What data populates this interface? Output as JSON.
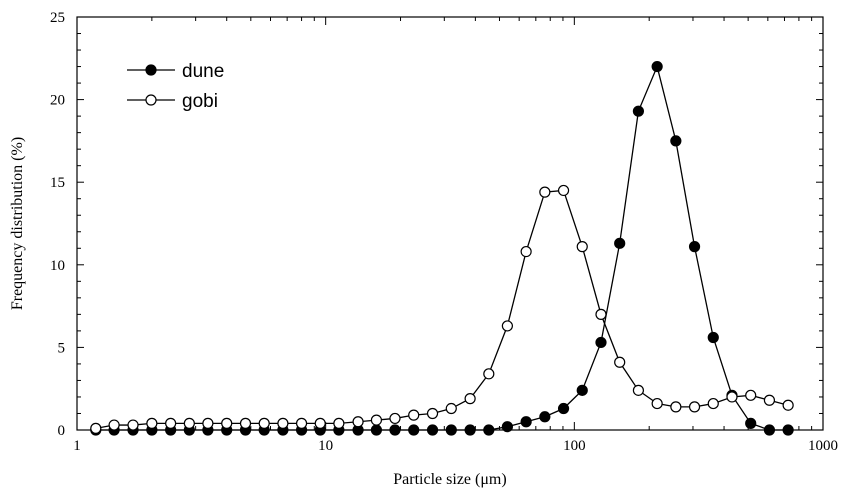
{
  "chart_data": {
    "type": "line",
    "xlabel": "Particle size (μm)",
    "ylabel": "Frequency distribution (%)",
    "xscale": "log",
    "xlim": [
      1,
      1000
    ],
    "ylim": [
      0,
      25
    ],
    "x_ticks": [
      "1",
      "10",
      "100",
      "1000"
    ],
    "x_tick_values": [
      1,
      10,
      100,
      1000
    ],
    "y_ticks": [
      "0",
      "5",
      "10",
      "15",
      "20",
      "25"
    ],
    "y_tick_values": [
      0,
      5,
      10,
      15,
      20,
      25
    ],
    "grid": false,
    "legend_position": "top-left",
    "series": [
      {
        "name": "dune",
        "marker": "filled-circle",
        "color": "#000000",
        "x": [
          1.19,
          1.41,
          1.68,
          2.0,
          2.38,
          2.83,
          3.36,
          4.0,
          4.76,
          5.66,
          6.73,
          8.0,
          9.51,
          11.3,
          13.5,
          16.0,
          19.0,
          22.6,
          26.9,
          32.0,
          38.1,
          45.3,
          53.8,
          64.0,
          76.1,
          90.5,
          107.6,
          128.0,
          152.2,
          181.0,
          215.3,
          256.0,
          304.4,
          362.0,
          430.5,
          512.0,
          608.9,
          724.1
        ],
        "y": [
          0,
          0,
          0,
          0,
          0,
          0,
          0,
          0,
          0,
          0,
          0,
          0,
          0,
          0,
          0,
          0,
          0,
          0,
          0,
          0,
          0,
          0,
          0.2,
          0.5,
          0.8,
          1.3,
          2.4,
          5.3,
          11.3,
          19.3,
          22.0,
          17.5,
          11.1,
          5.6,
          2.1,
          0.4,
          0,
          0
        ]
      },
      {
        "name": "gobi",
        "marker": "open-circle",
        "color": "#000000",
        "x": [
          1.19,
          1.41,
          1.68,
          2.0,
          2.38,
          2.83,
          3.36,
          4.0,
          4.76,
          5.66,
          6.73,
          8.0,
          9.51,
          11.3,
          13.5,
          16.0,
          19.0,
          22.6,
          26.9,
          32.0,
          38.1,
          45.3,
          53.8,
          64.0,
          76.1,
          90.5,
          107.6,
          128.0,
          152.2,
          181.0,
          215.3,
          256.0,
          304.4,
          362.0,
          430.5,
          512.0,
          608.9,
          724.1
        ],
        "y": [
          0.1,
          0.3,
          0.3,
          0.4,
          0.4,
          0.4,
          0.4,
          0.4,
          0.4,
          0.4,
          0.4,
          0.4,
          0.4,
          0.4,
          0.5,
          0.6,
          0.7,
          0.9,
          1.0,
          1.3,
          1.9,
          3.4,
          6.3,
          10.8,
          14.4,
          14.5,
          11.1,
          7.0,
          4.1,
          2.4,
          1.6,
          1.4,
          1.4,
          1.6,
          2.0,
          2.1,
          1.8,
          1.5
        ]
      }
    ]
  }
}
